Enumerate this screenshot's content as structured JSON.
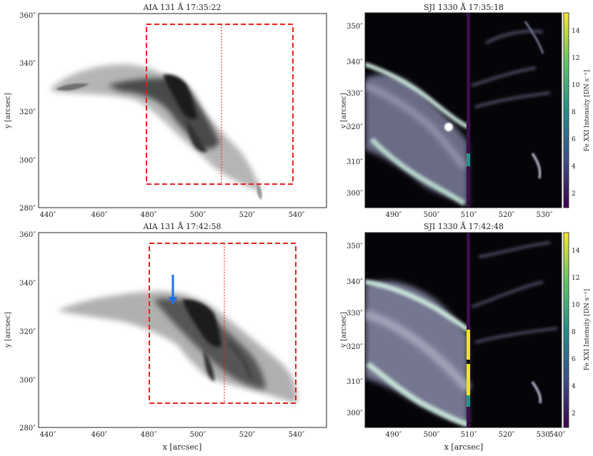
{
  "panels": [
    {
      "title": "AIA 131 Å 17:35:22",
      "ylabel": "y [arcsec]",
      "xlabel": "",
      "xticks": [
        "440″",
        "460″",
        "480″",
        "500″",
        "520″",
        "540″"
      ],
      "yticks": [
        "280″",
        "300″",
        "320″",
        "340″",
        "360″"
      ]
    },
    {
      "title": "SJI 1330 Å 17:35:18",
      "ylabel": "y [arcsec]",
      "xlabel": "",
      "xticks": [
        "490″",
        "500″",
        "510″",
        "520″",
        "530″"
      ],
      "yticks": [
        "300″",
        "310″",
        "320″",
        "330″",
        "340″",
        "350″"
      ],
      "colorbar": {
        "label": "Fe XXI Intensity [DN s⁻¹]",
        "ticks": [
          "2",
          "4",
          "6",
          "8",
          "10",
          "12",
          "14"
        ]
      }
    },
    {
      "title": "AIA 131 Å 17:42:58",
      "ylabel": "y [arcsec]",
      "xlabel": "x [arcsec]",
      "xticks": [
        "440″",
        "460″",
        "480″",
        "500″",
        "520″",
        "540″"
      ],
      "yticks": [
        "280″",
        "300″",
        "320″",
        "340″",
        "360″"
      ]
    },
    {
      "title": "SJI 1330 Å 17:42:48",
      "ylabel": "y [arcsec]",
      "xlabel": "x [arcsec]",
      "xticks": [
        "490″",
        "500″",
        "510″",
        "520″",
        "530″",
        "540″"
      ],
      "yticks": [
        "300″",
        "310″",
        "320″",
        "330″",
        "340″",
        "350″"
      ],
      "colorbar": {
        "label": "Fe XXI Intensity [DN s⁻¹]",
        "ticks": [
          "2",
          "4",
          "6",
          "8",
          "10",
          "12",
          "14"
        ]
      }
    }
  ],
  "colors": {
    "box": "#e8201e",
    "arrow": "#1f6fe8",
    "sji_bg": "#050408",
    "sji_bright": "#c9e4da",
    "slit": "#3a0f4a",
    "fe_high": "#f2e41a",
    "fe_mid": "#29908a"
  },
  "icons": [
    "blue-arrow-icon"
  ]
}
